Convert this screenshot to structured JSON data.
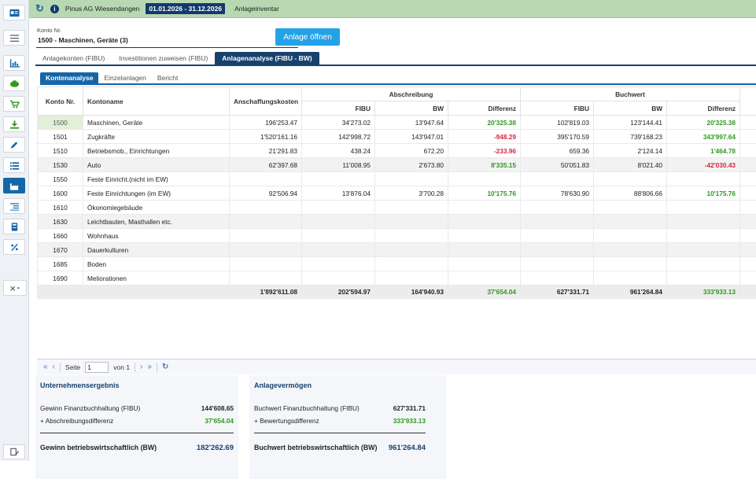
{
  "topbar": {
    "company": "Pinus AG Wiesendangen",
    "period": "01.01.2026 - 31.12.2026",
    "module": "Anlageinventar"
  },
  "form": {
    "konto_label": "Konto Nr.",
    "konto_value": "1500 - Maschinen, Geräte  (3)",
    "open_button": "Anlage öffnen"
  },
  "tabs": [
    "Anlagekonten (FIBU)",
    "Investitionen zuweisen (FIBU)",
    "Anlagenanalyse (FIBU - BW)"
  ],
  "subtabs": [
    "Kontenanalyse",
    "Einzelanlagen",
    "Bericht"
  ],
  "table": {
    "headers": {
      "konto": "Konto Nr.",
      "name": "Kontoname",
      "ak": "Anschaffungskosten",
      "abschreibung": "Abschreibung",
      "buchwert": "Buchwert",
      "fibu": "FIBU",
      "bw": "BW",
      "diff": "Differenz"
    },
    "rows": [
      {
        "konto": "1500",
        "name": "Maschinen, Geräte",
        "ak": "196'253.47",
        "a_fibu": "34'273.02",
        "a_bw": "13'947.64",
        "a_diff": "20'325.38",
        "b_fibu": "102'819.03",
        "b_bw": "123'144.41",
        "b_diff": "20'325.38"
      },
      {
        "konto": "1501",
        "name": "Zugkräfte",
        "ak": "1'520'161.16",
        "a_fibu": "142'998.72",
        "a_bw": "143'947.01",
        "a_diff": "-948.29",
        "b_fibu": "395'170.59",
        "b_bw": "739'168.23",
        "b_diff": "343'997.64"
      },
      {
        "konto": "1510",
        "name": "Betriebsmob., Einrichtungen",
        "ak": "21'291.83",
        "a_fibu": "438.24",
        "a_bw": "672.20",
        "a_diff": "-233.96",
        "b_fibu": "659.36",
        "b_bw": "2'124.14",
        "b_diff": "1'464.78"
      },
      {
        "konto": "1530",
        "name": "Auto",
        "ak": "62'397.68",
        "a_fibu": "11'008.95",
        "a_bw": "2'673.80",
        "a_diff": "8'335.15",
        "b_fibu": "50'051.83",
        "b_bw": "8'021.40",
        "b_diff": "-42'030.43"
      },
      {
        "konto": "1550",
        "name": "Feste Einricht.(nicht im EW)",
        "ak": "",
        "a_fibu": "",
        "a_bw": "",
        "a_diff": "",
        "b_fibu": "",
        "b_bw": "",
        "b_diff": ""
      },
      {
        "konto": "1600",
        "name": "Feste Einrichtungen (im EW)",
        "ak": "92'506.94",
        "a_fibu": "13'876.04",
        "a_bw": "3'700.28",
        "a_diff": "10'175.76",
        "b_fibu": "78'630.90",
        "b_bw": "88'806.66",
        "b_diff": "10'175.76"
      },
      {
        "konto": "1610",
        "name": "Ökonomiegebäude",
        "ak": "",
        "a_fibu": "",
        "a_bw": "",
        "a_diff": "",
        "b_fibu": "",
        "b_bw": "",
        "b_diff": ""
      },
      {
        "konto": "1630",
        "name": "Leichtbauten, Masthallen etc.",
        "ak": "",
        "a_fibu": "",
        "a_bw": "",
        "a_diff": "",
        "b_fibu": "",
        "b_bw": "",
        "b_diff": ""
      },
      {
        "konto": "1660",
        "name": "Wohnhaus",
        "ak": "",
        "a_fibu": "",
        "a_bw": "",
        "a_diff": "",
        "b_fibu": "",
        "b_bw": "",
        "b_diff": ""
      },
      {
        "konto": "1670",
        "name": "Dauerkulturen",
        "ak": "",
        "a_fibu": "",
        "a_bw": "",
        "a_diff": "",
        "b_fibu": "",
        "b_bw": "",
        "b_diff": ""
      },
      {
        "konto": "1685",
        "name": "Boden",
        "ak": "",
        "a_fibu": "",
        "a_bw": "",
        "a_diff": "",
        "b_fibu": "",
        "b_bw": "",
        "b_diff": ""
      },
      {
        "konto": "1690",
        "name": "Meliorationen",
        "ak": "",
        "a_fibu": "",
        "a_bw": "",
        "a_diff": "",
        "b_fibu": "",
        "b_bw": "",
        "b_diff": ""
      }
    ],
    "totals": {
      "ak": "1'892'611.08",
      "a_fibu": "202'594.97",
      "a_bw": "164'940.93",
      "a_diff": "37'654.04",
      "b_fibu": "627'331.71",
      "b_bw": "961'264.84",
      "b_diff": "333'933.13"
    }
  },
  "pager": {
    "page_label": "Seite",
    "page_value": "1",
    "of_label": "von 1"
  },
  "unternehmensergebnis": {
    "title": "Unternehmensergebnis",
    "r1_label": "Gewinn Finanzbuchhaltung (FIBU)",
    "r1_value": "144'608.65",
    "r2_label": "+ Abschreibungsdifferenz",
    "r2_value": "37'654.04",
    "total_label": "Gewinn betriebswirtschaftlich (BW)",
    "total_value": "182'262.69"
  },
  "anlagevermoegen": {
    "title": "Anlagevermögen",
    "r1_label": "Buchwert Finanzbuchhaltung (FIBU)",
    "r1_value": "627'331.71",
    "r2_label": "+ Bewertungsdifferenz",
    "r2_value": "333'933.13",
    "total_label": "Buchwert betriebswirtschaftlich (BW)",
    "total_value": "961'264.84"
  },
  "colors": {
    "positive": "#2e9a1e",
    "negative": "#d7263d",
    "accent": "#17426e",
    "topbar": "#b7d8b0"
  }
}
